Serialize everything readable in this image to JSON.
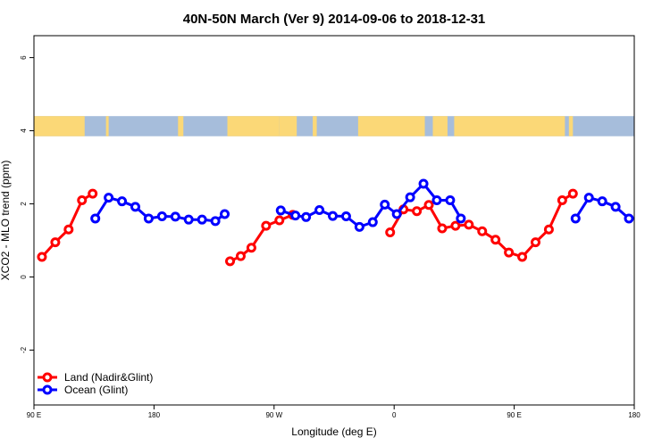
{
  "chart_data": {
    "type": "line",
    "title": "40N-50N March (Ver 9)   2014-09-06 to 2018-12-31",
    "xlabel": "Longitude (deg E)",
    "ylabel": "XCO2 - MLO trend (ppm)",
    "xlim": [
      90,
      540
    ],
    "ylim": [
      -3.5,
      6.6
    ],
    "x_ticks": [
      {
        "value": 90,
        "label": "90 E"
      },
      {
        "value": 180,
        "label": "180"
      },
      {
        "value": 270,
        "label": "90 W"
      },
      {
        "value": 360,
        "label": "0"
      },
      {
        "value": 450,
        "label": "90 E"
      },
      {
        "value": 540,
        "label": "180"
      }
    ],
    "y_ticks": [
      {
        "value": -2,
        "label": "-2"
      },
      {
        "value": 0,
        "label": "0"
      },
      {
        "value": 2,
        "label": "2"
      },
      {
        "value": 4,
        "label": "4"
      },
      {
        "value": 6,
        "label": "6"
      }
    ],
    "legend_position": "bottom-left",
    "map_band": {
      "ymin": 3.85,
      "ymax": 4.4,
      "land_color": "#FBD877",
      "ocean_color": "#A6BDDB"
    },
    "series": [
      {
        "name": "Land (Nadir&Glint)",
        "color": "#FF0000",
        "segments": [
          [
            [
              96,
              0.55
            ],
            [
              106,
              0.95
            ],
            [
              116,
              1.3
            ],
            [
              126,
              2.1
            ],
            [
              134,
              2.28
            ]
          ],
          [
            [
              237,
              0.43
            ],
            [
              245,
              0.57
            ],
            [
              253,
              0.8
            ],
            [
              264,
              1.4
            ],
            [
              274,
              1.55
            ],
            [
              284,
              1.7
            ]
          ],
          [
            [
              357,
              1.22
            ],
            [
              367,
              1.85
            ],
            [
              377,
              1.8
            ],
            [
              386,
              1.97
            ],
            [
              396,
              1.33
            ],
            [
              406,
              1.4
            ],
            [
              416,
              1.43
            ],
            [
              426,
              1.25
            ],
            [
              436,
              1.02
            ],
            [
              446,
              0.67
            ],
            [
              456,
              0.55
            ],
            [
              466,
              0.95
            ],
            [
              476,
              1.3
            ],
            [
              486,
              2.1
            ],
            [
              494,
              2.28
            ]
          ]
        ]
      },
      {
        "name": "Ocean (Glint)",
        "color": "#0000FF",
        "segments": [
          [
            [
              136,
              1.6
            ],
            [
              146,
              2.17
            ],
            [
              156,
              2.07
            ],
            [
              166,
              1.92
            ],
            [
              176,
              1.6
            ],
            [
              186,
              1.66
            ],
            [
              196,
              1.65
            ],
            [
              206,
              1.57
            ],
            [
              216,
              1.57
            ],
            [
              226,
              1.53
            ],
            [
              233,
              1.72
            ]
          ],
          [
            [
              275,
              1.82
            ],
            [
              286,
              1.68
            ],
            [
              294,
              1.64
            ],
            [
              304,
              1.83
            ],
            [
              314,
              1.67
            ],
            [
              324,
              1.66
            ],
            [
              334,
              1.37
            ],
            [
              344,
              1.5
            ],
            [
              353,
              1.98
            ],
            [
              362,
              1.72
            ],
            [
              372,
              2.18
            ],
            [
              382,
              2.55
            ],
            [
              392,
              2.1
            ],
            [
              402,
              2.1
            ],
            [
              410,
              1.6
            ]
          ],
          [
            [
              496,
              1.6
            ],
            [
              506,
              2.17
            ],
            [
              516,
              2.07
            ],
            [
              526,
              1.92
            ],
            [
              536,
              1.6
            ]
          ]
        ]
      }
    ]
  }
}
